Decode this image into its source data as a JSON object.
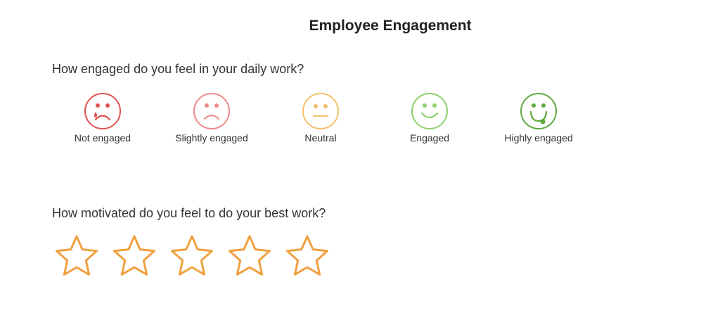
{
  "header": {
    "title": "Employee Engagement"
  },
  "questions": [
    {
      "text": "How engaged do you feel in your daily work?",
      "options": [
        "Not engaged",
        "Slightly engaged",
        "Neutral",
        "Engaged",
        "Highly engaged"
      ]
    },
    {
      "text": "How motivated do you feel to do your best work?"
    }
  ]
}
